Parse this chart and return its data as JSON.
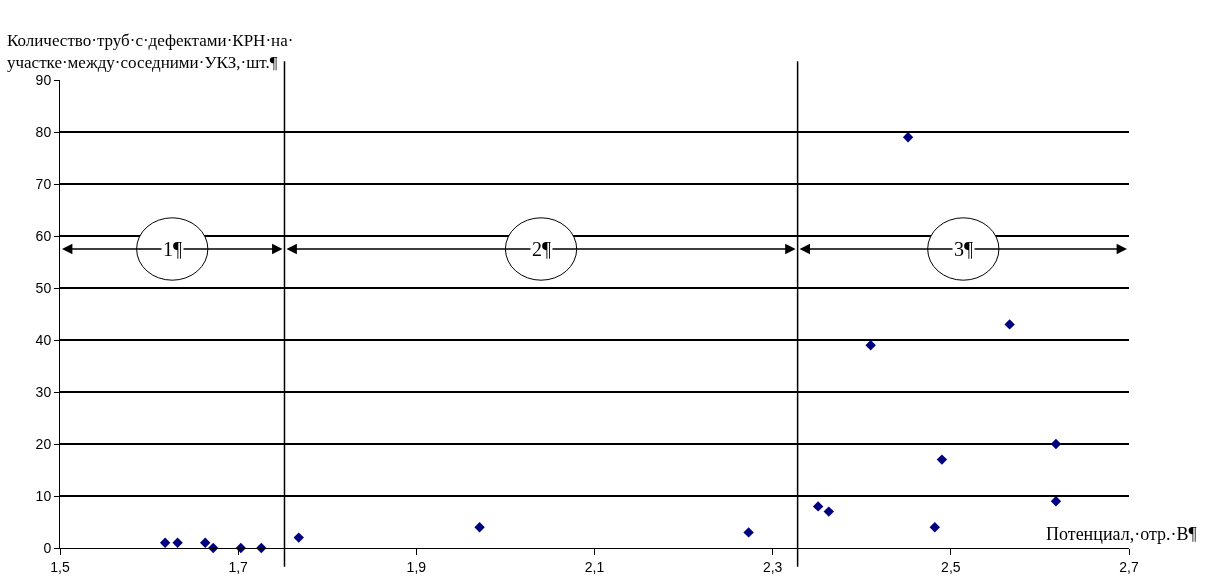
{
  "chart_data": {
    "type": "scatter",
    "ylabel": "Количество·труб·с·дефектами·КРН·на·\nучастке·между·соседними·УКЗ,·шт.¶",
    "xlabel": "Потенциал,·отр.·В¶",
    "x": [
      1.618,
      1.632,
      1.663,
      1.672,
      1.703,
      1.726,
      1.768,
      1.971,
      2.273,
      2.351,
      2.363,
      2.41,
      2.452,
      2.482,
      2.49,
      2.566,
      2.618,
      2.618
    ],
    "values": [
      1,
      1,
      1,
      0,
      0,
      0,
      2,
      4,
      3,
      8,
      7,
      39,
      79,
      4,
      17,
      43,
      20,
      9
    ],
    "color": "#000080",
    "marker": "diamond",
    "xlim": [
      1.5,
      2.7
    ],
    "xticks": [
      {
        "value": 1.5,
        "label": "1,5"
      },
      {
        "value": 1.7,
        "label": "1,7"
      },
      {
        "value": 1.9,
        "label": "1,9"
      },
      {
        "value": 2.1,
        "label": "2,1"
      },
      {
        "value": 2.3,
        "label": "2,3"
      },
      {
        "value": 2.5,
        "label": "2,5"
      },
      {
        "value": 2.7,
        "label": "2,7"
      }
    ],
    "ylim": [
      0,
      90
    ],
    "yticks": [
      0,
      10,
      20,
      30,
      40,
      50,
      60,
      70,
      80,
      90
    ],
    "grid": "y",
    "ref_lines": [
      {
        "axis": "x",
        "value": 1.752,
        "color": "#000000"
      },
      {
        "axis": "x",
        "value": 2.328,
        "color": "#000000"
      }
    ],
    "annotations": [
      {
        "text": "1¶",
        "x": 1.626,
        "y": 57.5
      },
      {
        "text": "2¶",
        "x": 2.04,
        "y": 57.5
      },
      {
        "text": "3¶",
        "x": 2.514,
        "y": 57.5
      }
    ]
  }
}
